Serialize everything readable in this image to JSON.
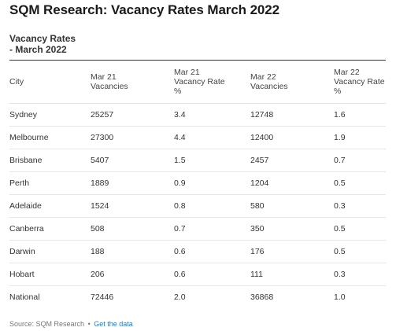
{
  "header": {
    "title": "SQM Research: Vacancy Rates March 2022",
    "subtitle": "Vacancy Rates\n- March 2022"
  },
  "chart_data": {
    "type": "table",
    "columns": [
      "City",
      "Mar 21\nVacancies",
      "Mar 21\nVacancy Rate\n%",
      "Mar 22\nVacancies",
      "Mar 22\nVacancy Rate\n%"
    ],
    "rows": [
      [
        "Sydney",
        "25257",
        "3.4",
        "12748",
        "1.6"
      ],
      [
        "Melbourne",
        "27300",
        "4.4",
        "12400",
        "1.9"
      ],
      [
        "Brisbane",
        "5407",
        "1.5",
        "2457",
        "0.7"
      ],
      [
        "Perth",
        "1889",
        "0.9",
        "1204",
        "0.5"
      ],
      [
        "Adelaide",
        "1524",
        "0.8",
        "580",
        "0.3"
      ],
      [
        "Canberra",
        "508",
        "0.7",
        "350",
        "0.5"
      ],
      [
        "Darwin",
        "188",
        "0.6",
        "176",
        "0.5"
      ],
      [
        "Hobart",
        "206",
        "0.6",
        "111",
        "0.3"
      ],
      [
        "National",
        "72446",
        "2.0",
        "36868",
        "1.0"
      ]
    ]
  },
  "footer": {
    "source": "Source: SQM Research",
    "separator": "•",
    "link_label": "Get the data"
  },
  "colors": {
    "link": "#2a7ab8",
    "rule": "#333333"
  }
}
